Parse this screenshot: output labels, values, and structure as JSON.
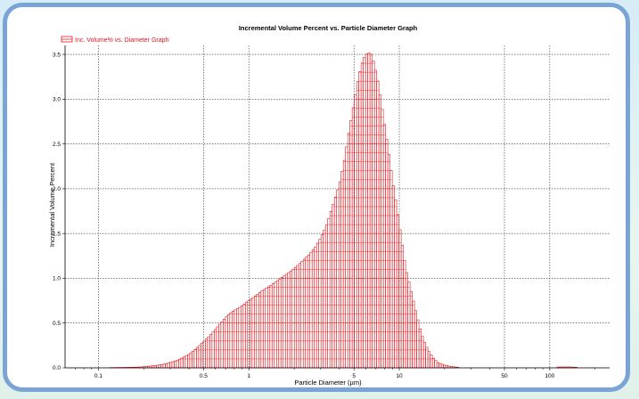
{
  "chart_data": {
    "type": "bar",
    "title": "Incremental Volume Percent vs. Particle Diameter Graph",
    "xlabel": "Particle Diameter (µm)",
    "ylabel": "Incremental Volume Percent",
    "x_scale": "log",
    "xlim": [
      0.06,
      250
    ],
    "ylim": [
      0,
      3.6
    ],
    "x_ticks": [
      0.1,
      0.5,
      1,
      5,
      10,
      50,
      100
    ],
    "x_tick_labels": [
      "0.1",
      "0.5",
      "1",
      "5",
      "10",
      "50",
      "100"
    ],
    "y_ticks": [
      0.0,
      0.5,
      1.0,
      1.5,
      2.0,
      2.5,
      3.0,
      3.5
    ],
    "y_tick_labels": [
      "0.0",
      "0.5",
      "1.0",
      "1.5",
      "2.0",
      "2.5",
      "3.0",
      "3.5"
    ],
    "grid": true,
    "legend_position": "top-left",
    "series": [
      {
        "name": "Inc. Volume% vs. Diameter Graph",
        "color": "#e8141b",
        "points": [
          [
            0.12,
            0.003
          ],
          [
            0.15,
            0.005
          ],
          [
            0.18,
            0.008
          ],
          [
            0.2,
            0.012
          ],
          [
            0.22,
            0.02
          ],
          [
            0.25,
            0.03
          ],
          [
            0.28,
            0.045
          ],
          [
            0.3,
            0.06
          ],
          [
            0.33,
            0.08
          ],
          [
            0.36,
            0.11
          ],
          [
            0.4,
            0.15
          ],
          [
            0.45,
            0.22
          ],
          [
            0.5,
            0.29
          ],
          [
            0.55,
            0.36
          ],
          [
            0.6,
            0.43
          ],
          [
            0.65,
            0.5
          ],
          [
            0.7,
            0.56
          ],
          [
            0.75,
            0.61
          ],
          [
            0.8,
            0.64
          ],
          [
            0.9,
            0.69
          ],
          [
            1.0,
            0.75
          ],
          [
            1.1,
            0.8
          ],
          [
            1.2,
            0.85
          ],
          [
            1.4,
            0.92
          ],
          [
            1.6,
            0.99
          ],
          [
            1.8,
            1.05
          ],
          [
            2.0,
            1.11
          ],
          [
            2.2,
            1.17
          ],
          [
            2.5,
            1.26
          ],
          [
            2.8,
            1.36
          ],
          [
            3.0,
            1.45
          ],
          [
            3.3,
            1.6
          ],
          [
            3.6,
            1.8
          ],
          [
            4.0,
            2.05
          ],
          [
            4.3,
            2.3
          ],
          [
            4.6,
            2.6
          ],
          [
            5.0,
            2.95
          ],
          [
            5.3,
            3.2
          ],
          [
            5.6,
            3.38
          ],
          [
            5.9,
            3.48
          ],
          [
            6.2,
            3.52
          ],
          [
            6.5,
            3.5
          ],
          [
            6.8,
            3.4
          ],
          [
            7.2,
            3.2
          ],
          [
            7.6,
            2.95
          ],
          [
            8.0,
            2.7
          ],
          [
            8.5,
            2.4
          ],
          [
            9.0,
            2.1
          ],
          [
            9.5,
            1.85
          ],
          [
            10.0,
            1.6
          ],
          [
            10.5,
            1.35
          ],
          [
            11.0,
            1.12
          ],
          [
            12.0,
            0.85
          ],
          [
            13.0,
            0.6
          ],
          [
            14.0,
            0.38
          ],
          [
            15.0,
            0.25
          ],
          [
            16.0,
            0.16
          ],
          [
            17.0,
            0.1
          ],
          [
            18.0,
            0.06
          ],
          [
            20.0,
            0.03
          ],
          [
            22.0,
            0.015
          ],
          [
            25.0,
            0.005
          ],
          [
            110.0,
            0.008
          ],
          [
            120.0,
            0.01
          ],
          [
            130.0,
            0.01
          ],
          [
            140.0,
            0.009
          ],
          [
            150.0,
            0.007
          ]
        ]
      }
    ]
  }
}
